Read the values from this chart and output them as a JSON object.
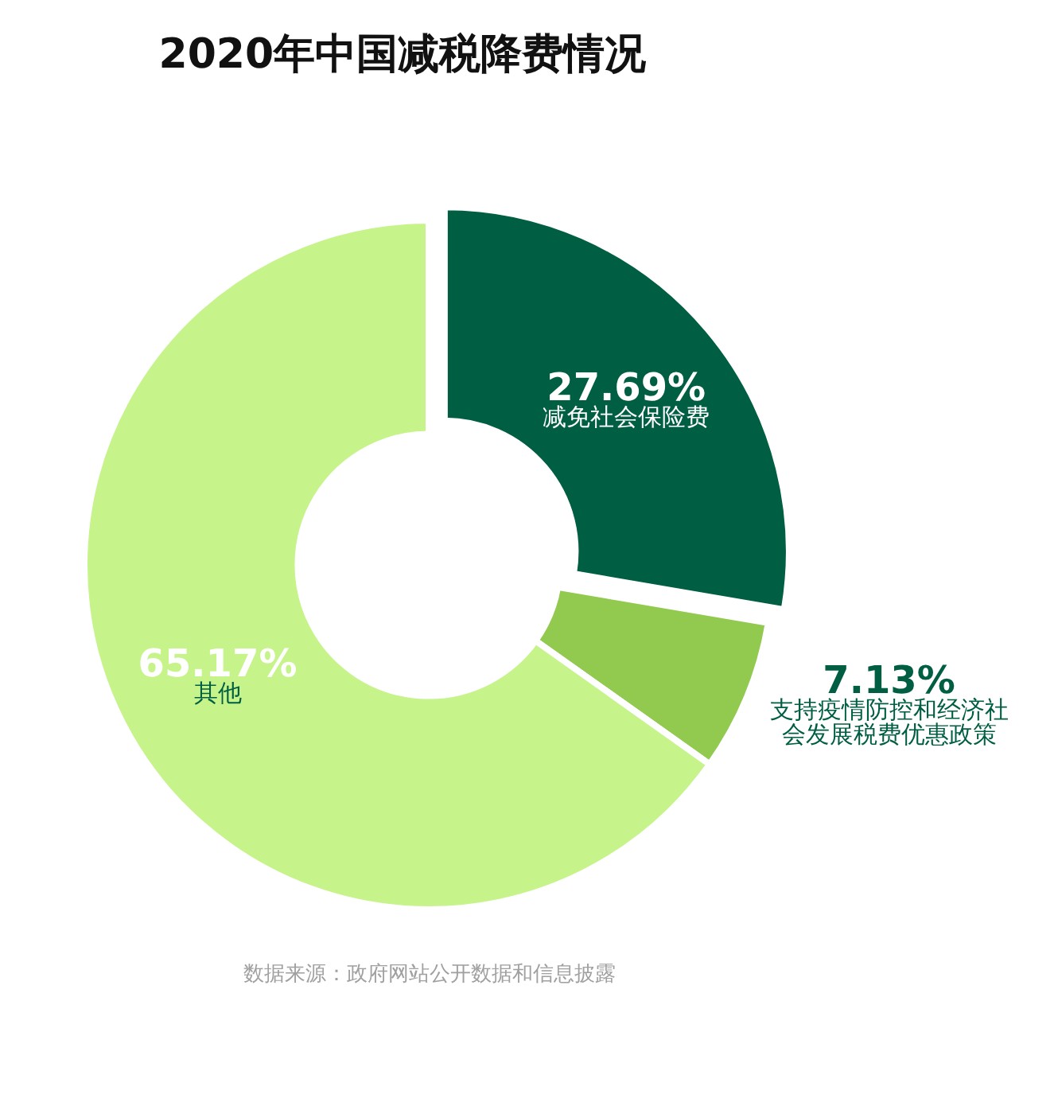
{
  "chart_data": {
    "type": "donut",
    "title": "2020年中国减税降费情况",
    "categories": [
      "减免社会保险费",
      "支持疫情防控和经济社会发展税费优惠政策",
      "其他"
    ],
    "values": [
      27.69,
      7.13,
      65.17
    ],
    "colors": [
      "#005e43",
      "#92c94f",
      "#c6f48b"
    ],
    "value_labels": [
      "27.69%",
      "7.13%",
      "65.17%"
    ],
    "legend": false,
    "annotations": [
      "数据来源：政府网站公开数据和信息披露"
    ]
  }
}
